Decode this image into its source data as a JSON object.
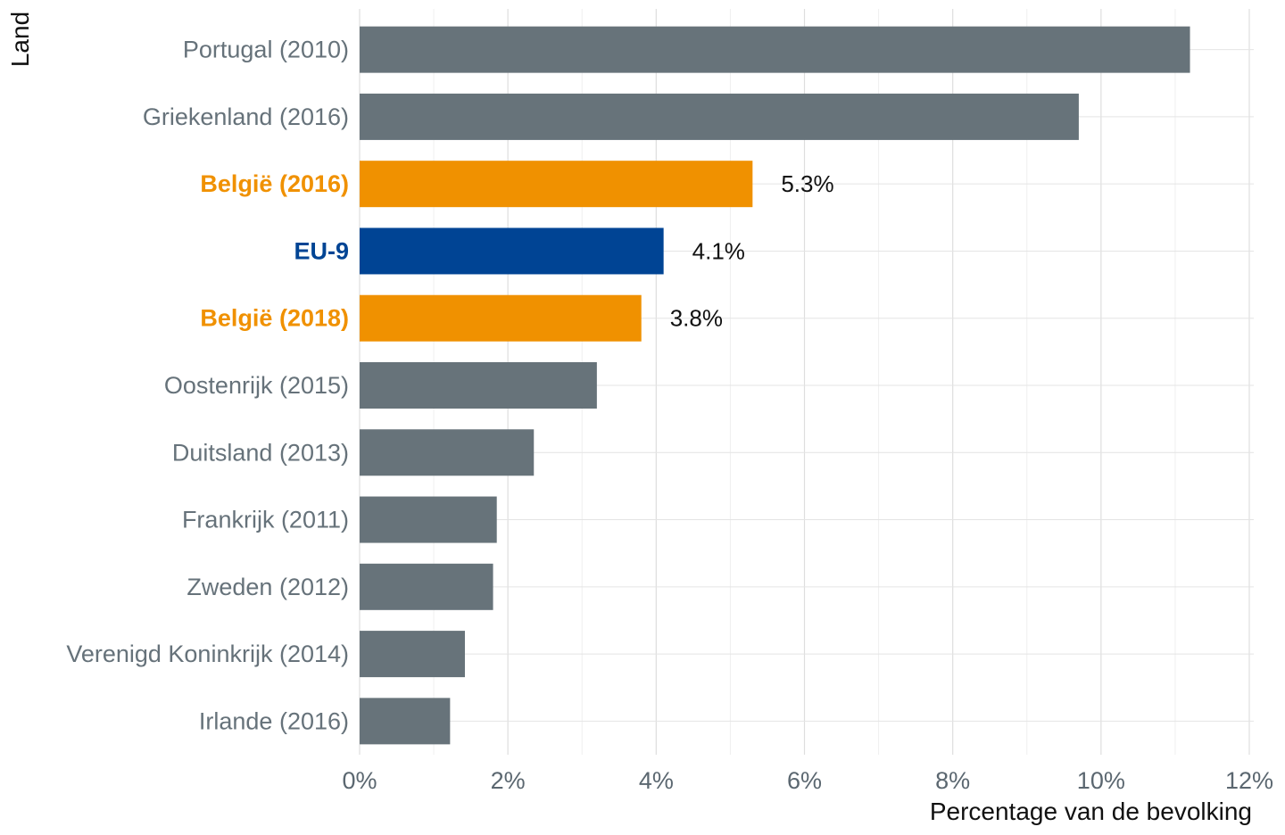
{
  "chart_data": {
    "type": "bar",
    "orientation": "horizontal",
    "xlabel": "Percentage van de bevolking",
    "ylabel": "Land",
    "xlim": [
      0,
      12
    ],
    "xticks": [
      0,
      2,
      4,
      6,
      8,
      10,
      12
    ],
    "xtick_labels": [
      "0%",
      "2%",
      "4%",
      "6%",
      "8%",
      "10%",
      "12%"
    ],
    "grid": true,
    "legend": "none",
    "categories": [
      "Portugal (2010)",
      "Griekenland (2016)",
      "België (2016)",
      "EU-9",
      "België (2018)",
      "Oostenrijk (2015)",
      "Duitsland (2013)",
      "Frankrijk (2011)",
      "Zweden (2012)",
      "Verenigd Koninkrijk (2014)",
      "Irlande (2016)"
    ],
    "values": [
      11.2,
      9.7,
      5.3,
      4.1,
      3.8,
      3.2,
      2.35,
      1.85,
      1.8,
      1.42,
      1.22
    ],
    "bar_colors": [
      "#67737a",
      "#67737a",
      "#f09100",
      "#004494",
      "#f09100",
      "#67737a",
      "#67737a",
      "#67737a",
      "#67737a",
      "#67737a",
      "#67737a"
    ],
    "label_colors": [
      "#66727a",
      "#66727a",
      "#f09100",
      "#004494",
      "#f09100",
      "#66727a",
      "#66727a",
      "#66727a",
      "#66727a",
      "#66727a",
      "#66727a"
    ],
    "highlight": [
      false,
      false,
      true,
      true,
      true,
      false,
      false,
      false,
      false,
      false,
      false
    ],
    "data_labels": [
      "",
      "",
      "5.3%",
      "4.1%",
      "3.8%",
      "",
      "",
      "",
      "",
      "",
      ""
    ]
  }
}
